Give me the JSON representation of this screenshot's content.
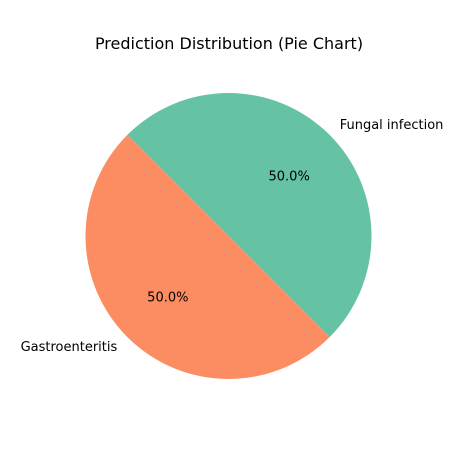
{
  "chart_data": {
    "type": "pie",
    "title": "Prediction Distribution (Pie Chart)",
    "slices": [
      {
        "label": "Gastroenteritis",
        "value": 50.0,
        "pct_label": "50.0%",
        "color": "#FC8D62"
      },
      {
        "label": "Fungal infection",
        "value": 50.0,
        "pct_label": "50.0%",
        "color": "#66C2A5"
      }
    ],
    "start_angle_deg": 135,
    "direction": "counterclockwise"
  }
}
